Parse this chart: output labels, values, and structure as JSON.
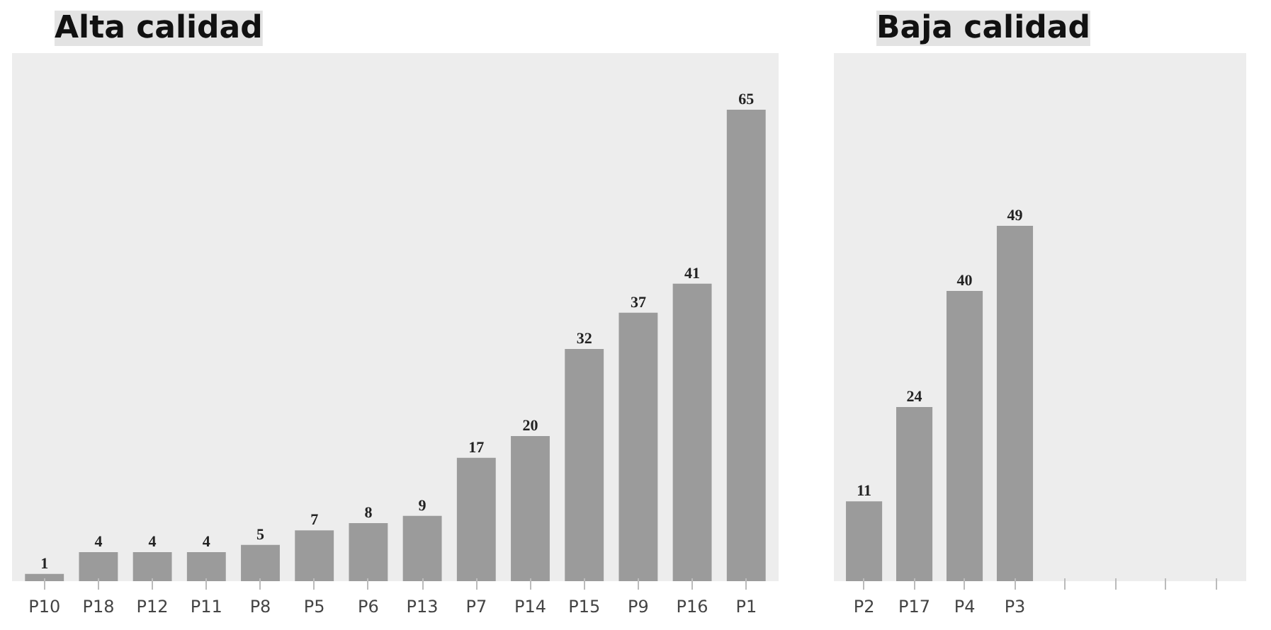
{
  "chart_data": [
    {
      "type": "bar",
      "title": "Alta calidad",
      "categories": [
        "P10",
        "P18",
        "P12",
        "P11",
        "P8",
        "P5",
        "P6",
        "P13",
        "P7",
        "P14",
        "P15",
        "P9",
        "P16",
        "P1"
      ],
      "values": [
        1,
        4,
        4,
        4,
        5,
        7,
        8,
        9,
        17,
        20,
        32,
        37,
        41,
        65
      ],
      "color": "#9b9b9b",
      "data_labels": true
    },
    {
      "type": "bar",
      "title": "Baja calidad",
      "categories": [
        "P2",
        "P17",
        "P4",
        "P3",
        null,
        null,
        null,
        null
      ],
      "values": [
        11,
        24,
        40,
        49,
        null,
        null,
        null,
        null
      ],
      "color": "#9b9b9b",
      "data_labels": true
    }
  ]
}
